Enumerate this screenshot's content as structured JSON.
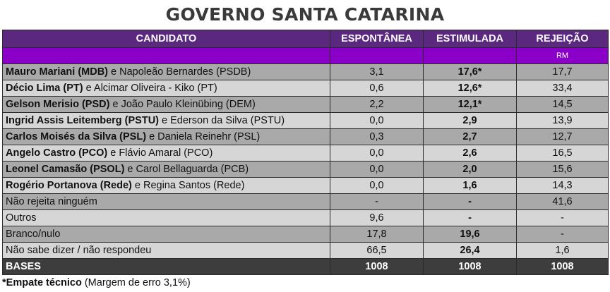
{
  "title": "GOVERNO SANTA CATARINA",
  "headers": {
    "candidato": "CANDIDATO",
    "espontanea": "ESPONTÂNEA",
    "estimulada": "ESTIMULADA",
    "rejeicao": "REJEIÇÃO"
  },
  "subheader_rm": "RM",
  "rows": [
    {
      "main": "Mauro Mariani (MDB)",
      "rest": " e Napoleão Bernardes (PSDB)",
      "esp": "3,1",
      "est": "17,6*",
      "rej": "17,7"
    },
    {
      "main": "Décio Lima (PT)",
      "rest": " e Alcimar Oliveira - Kiko (PT)",
      "esp": "0,6",
      "est": "12,6*",
      "rej": "33,4"
    },
    {
      "main": "Gelson Merisio (PSD)",
      "rest": " e João Paulo Kleinübing (DEM)",
      "esp": "2,2",
      "est": "12,1*",
      "rej": "14,5"
    },
    {
      "main": "Ingrid Assis Leitemberg (PSTU)",
      "rest": " e Ederson da Silva (PSTU)",
      "esp": "0,0",
      "est": "2,9",
      "rej": "13,9"
    },
    {
      "main": "Carlos Moisés da Silva (PSL)",
      "rest": " e Daniela Reinehr (PSL)",
      "esp": "0,3",
      "est": "2,7",
      "rej": "12,7"
    },
    {
      "main": "Angelo Castro (PCO)",
      "rest": " e Flávio Amaral (PCO)",
      "esp": "0,0",
      "est": "2,6",
      "rej": "16,5"
    },
    {
      "main": "Leonel Camasão (PSOL)",
      "rest": " e Carol Bellaguarda (PCB)",
      "esp": "0,0",
      "est": "2,0",
      "rej": "15,6"
    },
    {
      "main": "Rogério Portanova (Rede)",
      "rest": " e Regina Santos (Rede)",
      "esp": "0,0",
      "est": "1,6",
      "rej": "14,3"
    },
    {
      "main": "",
      "rest": "Não rejeita ninguém",
      "esp": "-",
      "est": "-",
      "rej": "41,6"
    },
    {
      "main": "",
      "rest": "Outros",
      "esp": "9,6",
      "est": "-",
      "rej": "-"
    },
    {
      "main": "",
      "rest": "Branco/nulo",
      "esp": "17,8",
      "est": "19,6",
      "rej": "-"
    },
    {
      "main": "",
      "rest": "Não sabe dizer / não respondeu",
      "esp": "66,5",
      "est": "26,4",
      "rej": "1,6"
    }
  ],
  "bases": {
    "label": "BASES",
    "esp": "1008",
    "est": "1008",
    "rej": "1008"
  },
  "footnote": {
    "bold": "*Empate técnico",
    "rest": " (Margem de erro 3,1%)"
  }
}
